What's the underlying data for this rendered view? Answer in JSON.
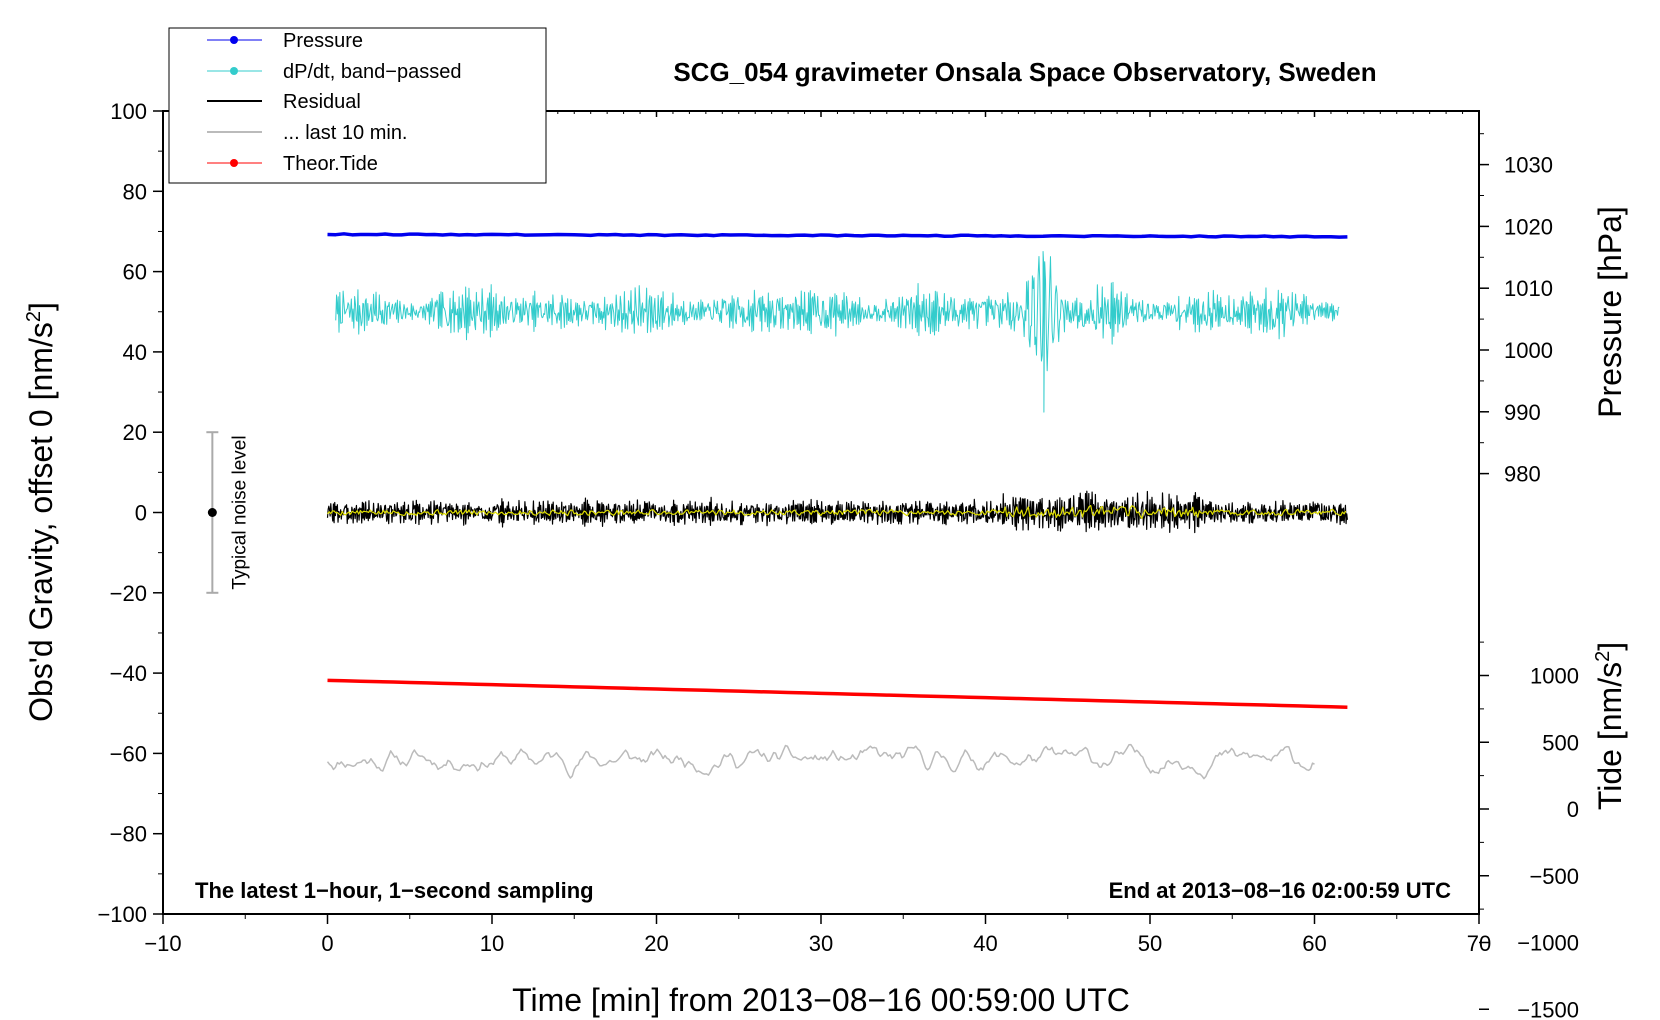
{
  "chart_data": {
    "type": "line",
    "title": "SCG_054 gravimeter Onsala Space Observatory, Sweden",
    "xlabel": "Time [min] from 2013−08−16 00:59:00 UTC",
    "ylabel": "Obs'd Gravity, offset 0 [nm/s",
    "ylabel_sup": "2",
    "ylabel_end": "]",
    "xlim": [
      -10,
      70
    ],
    "ylim": [
      -100,
      100
    ],
    "x_ticks": [
      -10,
      0,
      10,
      20,
      30,
      40,
      50,
      60,
      70
    ],
    "x_tick_labels": [
      "−10",
      "0",
      "10",
      "20",
      "30",
      "40",
      "50",
      "60",
      "70"
    ],
    "y_ticks": [
      -100,
      -80,
      -60,
      -40,
      -20,
      0,
      20,
      40,
      60,
      80,
      100
    ],
    "y_tick_labels": [
      "−100",
      "−80",
      "−60",
      "−40",
      "−20",
      "0",
      "20",
      "40",
      "60",
      "80",
      "100"
    ],
    "right_axis_pressure": {
      "label": "Pressure [hPa]",
      "ticks": [
        980,
        990,
        1000,
        1010,
        1020,
        1030
      ],
      "tick_labels": [
        "980",
        "990",
        "1000",
        "1010",
        "1020",
        "1030"
      ]
    },
    "right_axis_tide": {
      "label": "Tide [nm/s",
      "label_sup": "2",
      "label_end": "]",
      "ticks": [
        -1500,
        -1000,
        -500,
        0,
        500,
        1000
      ],
      "tick_labels": [
        "−1500",
        "−1000",
        "−500",
        "0",
        "500",
        "1000"
      ]
    },
    "series": [
      {
        "name": "Pressure",
        "color": "#0000ee",
        "x_range": [
          0,
          62
        ],
        "y_start": 69.3,
        "y_end": 68.7,
        "note_gravity_units": true
      },
      {
        "name": "dP/dt, band−passed",
        "color": "#33cccc",
        "x_range": [
          0.5,
          61.5
        ],
        "center": 50,
        "amplitude": 5,
        "spike_x": 43.5,
        "spike_min": 25,
        "spike_max": 65
      },
      {
        "name": "Residual",
        "color": "#000000",
        "x_range": [
          0,
          62
        ],
        "center": 0,
        "amplitude": 2.5,
        "max": 6,
        "min": -5
      },
      {
        "name": "... last 10 min.",
        "color": "#bbbbbb",
        "x_range": [
          0,
          60
        ],
        "center": -61.5,
        "amplitude": 2,
        "max": -56,
        "min": -67
      },
      {
        "name": "Theor.Tide",
        "color": "#ff0000",
        "x_range": [
          0,
          62
        ],
        "y_start": -41.8,
        "y_end": -48.5
      }
    ],
    "smoothed_residual": {
      "color": "#dddd00",
      "x_range": [
        0,
        62
      ],
      "center": 0,
      "amplitude": 0.8
    },
    "noise_level": {
      "label": "Typical noise level",
      "x": -7,
      "y_low": -20,
      "y_high": 20,
      "center": 0
    },
    "annotations": {
      "bottom_left": "The latest 1−hour, 1−second sampling",
      "bottom_right": "End at 2013−08−16 02:00:59 UTC"
    },
    "legend_position": "top-left"
  }
}
